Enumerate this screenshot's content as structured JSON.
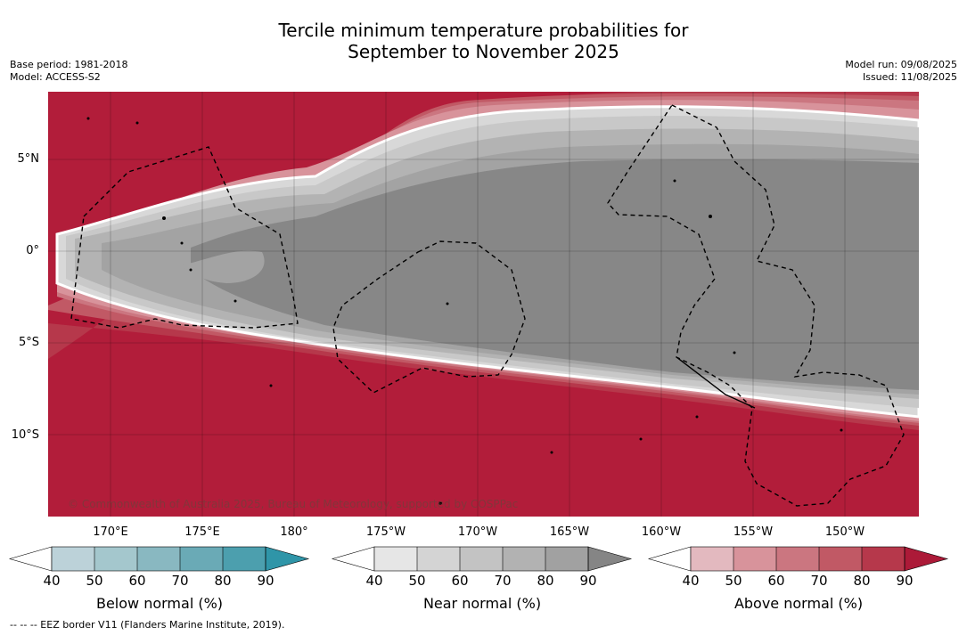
{
  "title_line1": "Tercile minimum temperature probabilities for",
  "title_line2": "September to November 2025",
  "base_period": "Base period: 1981-2018",
  "model": "Model: ACCESS-S2",
  "model_run": "Model run: 09/08/2025",
  "issued": "Issued: 11/08/2025",
  "copyright": "© Commonwealth of Australia 2025, Bureau of Meteorology, supported by COSPPac",
  "footnote": "--  --  -- EEZ border V11 (Flanders Marine Institute, 2019).",
  "lat_labels": [
    "5°N",
    "0°",
    "5°S",
    "10°S"
  ],
  "lon_labels": [
    "170°E",
    "175°E",
    "180°",
    "175°W",
    "170°W",
    "165°W",
    "160°W",
    "155°W",
    "150°W"
  ],
  "colorbars": [
    {
      "title": "Below normal (%)",
      "ticks": [
        "40",
        "50",
        "60",
        "70",
        "80",
        "90"
      ],
      "colors": [
        "#ffffff",
        "#bcd2d9",
        "#a4c7cd",
        "#89b8c1",
        "#6aaab6",
        "#4c9fae",
        "#2f95a8"
      ]
    },
    {
      "title": "Near normal (%)",
      "ticks": [
        "40",
        "50",
        "60",
        "70",
        "80",
        "90"
      ],
      "colors": [
        "#ffffff",
        "#e6e6e6",
        "#d4d4d4",
        "#c3c3c3",
        "#b2b2b2",
        "#a1a1a1",
        "#858585"
      ]
    },
    {
      "title": "Above normal (%)",
      "ticks": [
        "40",
        "50",
        "60",
        "70",
        "80",
        "90"
      ],
      "colors": [
        "#ffffff",
        "#e3b9bf",
        "#d8939b",
        "#cb7680",
        "#c15965",
        "#b6384b",
        "#ac1a38"
      ]
    }
  ],
  "map_colors": {
    "above_90": "#b21d3a",
    "above_80": "#b6384b",
    "above_70": "#c15965",
    "above_60": "#cb7680",
    "above_50": "#d8939b",
    "near_50": "#d8d8d8",
    "near_60": "#c8c8c8",
    "near_70": "#b3b3b3",
    "near_80": "#a3a3a3",
    "near_90": "#878787"
  }
}
